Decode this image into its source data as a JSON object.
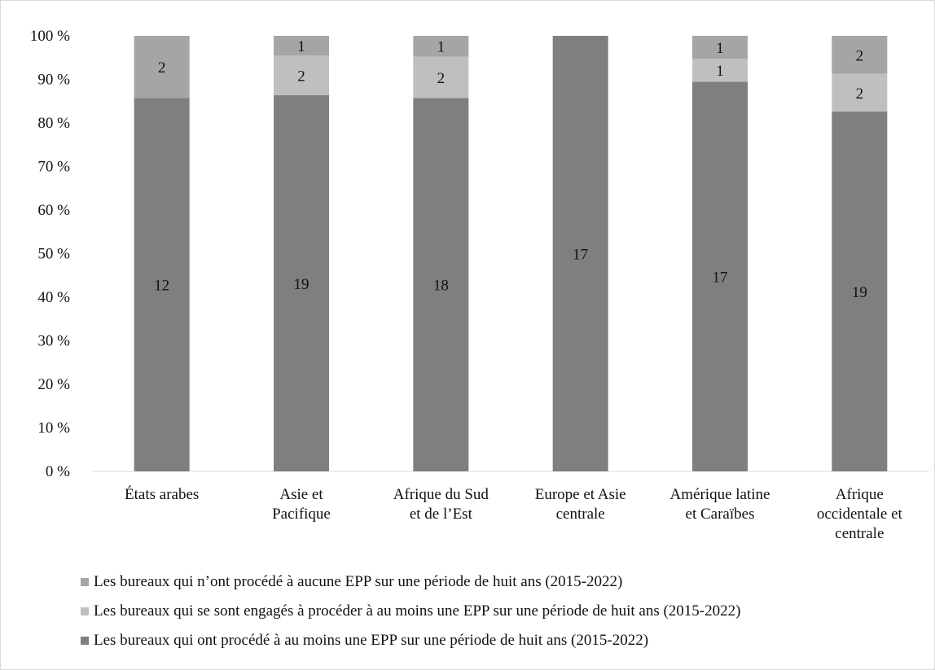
{
  "chart_data": {
    "type": "bar",
    "stacked": "percent",
    "categories": [
      "États arabes",
      "Asie et Pacifique",
      "Afrique du Sud et de l’Est",
      "Europe et Asie centrale",
      "Amérique latine et Caraïbes",
      "Afrique occidentale et centrale"
    ],
    "category_lines": [
      [
        "États arabes"
      ],
      [
        "Asie et",
        "Pacifique"
      ],
      [
        "Afrique du Sud",
        "et de l’Est"
      ],
      [
        "Europe et Asie",
        "centrale"
      ],
      [
        "Amérique latine",
        "et Caraïbes"
      ],
      [
        "Afrique",
        "occidentale et",
        "centrale"
      ]
    ],
    "series": [
      {
        "name": "Les bureaux qui ont procédé à au moins une EPP sur une période de huit ans (2015-2022)",
        "values": [
          12,
          19,
          18,
          17,
          17,
          19
        ],
        "color": "#7f7f7f"
      },
      {
        "name": "Les bureaux qui se sont engagés à procéder à au moins une EPP sur une période de huit ans (2015-2022)",
        "values": [
          0,
          2,
          2,
          0,
          1,
          2
        ],
        "color": "#bfbfbf"
      },
      {
        "name": "Les bureaux qui n’ont procédé à aucune EPP sur une période de huit ans (2015-2022)",
        "values": [
          2,
          1,
          1,
          0,
          1,
          2
        ],
        "color": "#a5a5a5"
      }
    ],
    "y_ticks": [
      "0 %",
      "10 %",
      "20 %",
      "30 %",
      "40 %",
      "50 %",
      "60 %",
      "70 %",
      "80 %",
      "90 %",
      "100 %"
    ],
    "ylim": [
      0,
      100
    ],
    "grid": false,
    "legend_position": "bottom",
    "legend_order": [
      2,
      1,
      0
    ]
  }
}
